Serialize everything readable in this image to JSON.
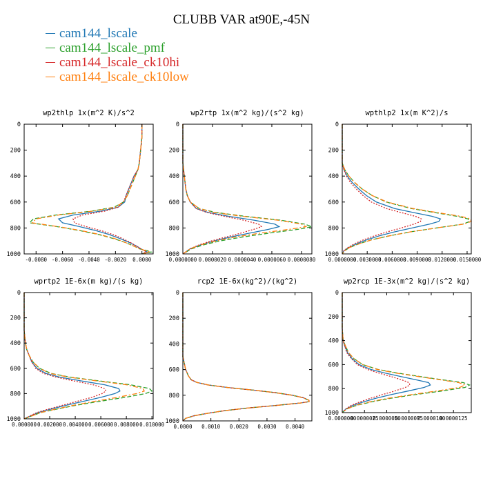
{
  "title": "CLUBB VAR at90E,-45N",
  "legend": [
    {
      "label": "cam144_lscale",
      "color": "#1f77b4"
    },
    {
      "label": "cam144_lscale_pmf",
      "color": "#2ca02c"
    },
    {
      "label": "cam144_lscale_ck10hi",
      "color": "#d62728"
    },
    {
      "label": "cam144_lscale_ck10low",
      "color": "#ff7f0e"
    }
  ],
  "chart_data": [
    {
      "type": "line",
      "title": "wp2thlp  1x(m^2 K)/s^2",
      "xlim": [
        -0.0089,
        0.00085
      ],
      "ylim": [
        1000,
        0
      ],
      "yticks": [
        0,
        200,
        400,
        600,
        800,
        1000
      ],
      "ytick_labels": [
        "0",
        "200",
        "400",
        "600",
        "800",
        "1000"
      ],
      "xticks": [
        -0.008,
        -0.006,
        -0.004,
        -0.002,
        0.0
      ],
      "xtick_labels": [
        "-0.0080",
        "-0.0060",
        "-0.0040",
        "-0.0020",
        "0.0000"
      ],
      "y": [
        0,
        100,
        200,
        300,
        350,
        400,
        450,
        500,
        550,
        600,
        640,
        670,
        700,
        730,
        760,
        790,
        820,
        850,
        880,
        910,
        940,
        960,
        975,
        985,
        1000
      ],
      "series": [
        {
          "name": "cam144_lscale",
          "style": "solid",
          "values": [
            0.0,
            0.0,
            -0.0001,
            -0.0002,
            -0.0003,
            -0.0006,
            -0.0008,
            -0.001,
            -0.0012,
            -0.0013,
            -0.0018,
            -0.0031,
            -0.0052,
            -0.0063,
            -0.006,
            -0.0047,
            -0.0035,
            -0.0025,
            -0.0017,
            -0.001,
            -0.0004,
            -0.0001,
            0.0002,
            0.0004,
            0.0
          ]
        },
        {
          "name": "cam144_lscale_pmf",
          "style": "dash",
          "values": [
            0.0,
            0.0,
            -0.0001,
            -0.0002,
            -0.0003,
            -0.0005,
            -0.0007,
            -0.0009,
            -0.0011,
            -0.0014,
            -0.0021,
            -0.0038,
            -0.0065,
            -0.0082,
            -0.0085,
            -0.0064,
            -0.0047,
            -0.0033,
            -0.0022,
            -0.0013,
            -0.0006,
            -0.0002,
            0.0004,
            0.0007,
            0.0
          ]
        },
        {
          "name": "cam144_lscale_ck10hi",
          "style": "dot",
          "values": [
            0.0,
            0.0,
            -0.0001,
            -0.0002,
            -0.0003,
            -0.0006,
            -0.0008,
            -0.001,
            -0.0012,
            -0.0014,
            -0.0018,
            -0.0028,
            -0.0045,
            -0.0052,
            -0.0051,
            -0.0042,
            -0.0031,
            -0.0022,
            -0.0015,
            -0.0009,
            -0.0004,
            -0.0001,
            0.0002,
            0.0003,
            0.0
          ]
        },
        {
          "name": "cam144_lscale_ck10low",
          "style": "dashdot",
          "values": [
            0.0,
            0.0,
            -0.0001,
            -0.0002,
            -0.0003,
            -0.0005,
            -0.0007,
            -0.0009,
            -0.0011,
            -0.0014,
            -0.002,
            -0.0037,
            -0.0063,
            -0.008,
            -0.0083,
            -0.0063,
            -0.0046,
            -0.0032,
            -0.0021,
            -0.0013,
            -0.0006,
            -0.0002,
            0.0003,
            0.0006,
            0.0
          ]
        }
      ]
    },
    {
      "type": "line",
      "title": "wp2rtp  1x(m^2 kg)/(s^2 kg)",
      "xlim": [
        0.0,
        8.7e-06
      ],
      "ylim": [
        1000,
        0
      ],
      "yticks": [
        0,
        200,
        400,
        600,
        800,
        1000
      ],
      "ytick_labels": [
        "0",
        "200",
        "400",
        "600",
        "800",
        "1000"
      ],
      "xticks": [
        0.0,
        2e-06,
        4e-06,
        6e-06,
        8e-06
      ],
      "xtick_labels": [
        "0.0000000",
        "0.0000020",
        "0.0000040",
        "0.0000060",
        "0.0000080"
      ],
      "y": [
        0,
        300,
        400,
        500,
        550,
        600,
        650,
        680,
        710,
        740,
        770,
        790,
        810,
        840,
        870,
        900,
        930,
        960,
        1000
      ],
      "series": [
        {
          "name": "cam144_lscale",
          "style": "solid",
          "values": [
            0.0,
            0.0,
            1e-07,
            2e-07,
            3e-07,
            5e-07,
            9e-07,
            1.7e-06,
            3.1e-06,
            4.8e-06,
            6.2e-06,
            6.5e-06,
            5.8e-06,
            4.5e-06,
            3.2e-06,
            2.1e-06,
            1.2e-06,
            5e-07,
            0.0
          ]
        },
        {
          "name": "cam144_lscale_pmf",
          "style": "dash",
          "values": [
            0.0,
            0.0,
            1e-07,
            2e-07,
            3e-07,
            5e-07,
            1.1e-06,
            2.2e-06,
            4.2e-06,
            6.6e-06,
            8.2e-06,
            8.7e-06,
            7.8e-06,
            5.8e-06,
            4e-06,
            2.5e-06,
            1.4e-06,
            6e-07,
            0.0
          ]
        },
        {
          "name": "cam144_lscale_ck10hi",
          "style": "dot",
          "values": [
            0.0,
            0.0,
            1e-07,
            2e-07,
            3e-07,
            5e-07,
            9e-07,
            1.6e-06,
            2.8e-06,
            4.1e-06,
            5.1e-06,
            5.3e-06,
            4.8e-06,
            3.9e-06,
            2.9e-06,
            1.9e-06,
            1.1e-06,
            5e-07,
            0.0
          ]
        },
        {
          "name": "cam144_lscale_ck10low",
          "style": "dashdot",
          "values": [
            0.0,
            0.0,
            1e-07,
            2e-07,
            3e-07,
            5e-07,
            1.1e-06,
            2.1e-06,
            4e-06,
            6.4e-06,
            8e-06,
            8.3e-06,
            7.2e-06,
            5.2e-06,
            3.5e-06,
            2.2e-06,
            1.2e-06,
            5e-07,
            0.0
          ]
        }
      ]
    },
    {
      "type": "line",
      "title": "wpthlp2  1x(m K^2)/s",
      "xlim": [
        0.0,
        0.0155
      ],
      "ylim": [
        1000,
        0
      ],
      "yticks": [
        0,
        200,
        400,
        600,
        800,
        1000
      ],
      "ytick_labels": [
        "0",
        "200",
        "400",
        "600",
        "800",
        "1000"
      ],
      "xticks": [
        0.0,
        0.003,
        0.006,
        0.009,
        0.012,
        0.015
      ],
      "xtick_labels": [
        "0.0000000",
        "0.0030000",
        "0.0060000",
        "0.0090000",
        "0.0120000",
        "0.0150000"
      ],
      "y": [
        0,
        300,
        350,
        400,
        450,
        500,
        550,
        600,
        650,
        680,
        710,
        730,
        750,
        770,
        800,
        830,
        860,
        890,
        920,
        950,
        975,
        1000
      ],
      "series": [
        {
          "name": "cam144_lscale",
          "style": "solid",
          "values": [
            0.0,
            0.0,
            0.0002,
            0.0006,
            0.0012,
            0.002,
            0.0029,
            0.0041,
            0.0063,
            0.0085,
            0.0108,
            0.0118,
            0.0116,
            0.0105,
            0.0084,
            0.0063,
            0.0045,
            0.003,
            0.0018,
            0.0008,
            0.0002,
            0.0
          ]
        },
        {
          "name": "cam144_lscale_pmf",
          "style": "dash",
          "values": [
            0.0,
            0.0,
            0.0003,
            0.0008,
            0.0015,
            0.0024,
            0.0036,
            0.0053,
            0.0083,
            0.011,
            0.0138,
            0.0151,
            0.0153,
            0.0145,
            0.0113,
            0.0082,
            0.0057,
            0.0036,
            0.0021,
            0.0009,
            0.0003,
            0.0
          ]
        },
        {
          "name": "cam144_lscale_ck10hi",
          "style": "dot",
          "values": [
            0.0,
            0.0,
            0.0002,
            0.0005,
            0.001,
            0.0017,
            0.0025,
            0.0035,
            0.0053,
            0.007,
            0.0088,
            0.0095,
            0.0094,
            0.0086,
            0.0071,
            0.0054,
            0.0039,
            0.0026,
            0.0015,
            0.0007,
            0.0002,
            0.0
          ]
        },
        {
          "name": "cam144_lscale_ck10low",
          "style": "dashdot",
          "values": [
            0.0,
            0.0,
            0.0003,
            0.0008,
            0.0015,
            0.0024,
            0.0036,
            0.0054,
            0.0085,
            0.0113,
            0.0142,
            0.0154,
            0.0155,
            0.0146,
            0.0113,
            0.0082,
            0.0057,
            0.0036,
            0.0021,
            0.0009,
            0.0003,
            0.0
          ]
        }
      ]
    },
    {
      "type": "line",
      "title": "wprtp2  1E-6x(m kg)/(s kg)",
      "xlim": [
        0.0,
        0.0101
      ],
      "ylim": [
        1000,
        0
      ],
      "yticks": [
        0,
        200,
        400,
        600,
        800,
        1000
      ],
      "ytick_labels": [
        "0",
        "200",
        "400",
        "600",
        "800",
        "1000"
      ],
      "xticks": [
        0.0,
        0.002,
        0.004,
        0.006,
        0.008,
        0.01
      ],
      "xtick_labels": [
        "0.000000",
        "0.002000",
        "0.004000",
        "0.006000",
        "0.008000",
        "0.010000"
      ],
      "y": [
        0,
        300,
        400,
        450,
        500,
        550,
        600,
        640,
        670,
        700,
        730,
        760,
        780,
        800,
        830,
        860,
        890,
        920,
        950,
        1000
      ],
      "series": [
        {
          "name": "cam144_lscale",
          "style": "solid",
          "values": [
            0.0,
            0.0,
            0.0001,
            0.0002,
            0.0004,
            0.0006,
            0.001,
            0.0017,
            0.0028,
            0.0045,
            0.0063,
            0.0074,
            0.0075,
            0.0071,
            0.006,
            0.0047,
            0.0034,
            0.0022,
            0.0011,
            0.0
          ]
        },
        {
          "name": "cam144_lscale_pmf",
          "style": "dash",
          "values": [
            0.0,
            0.0,
            0.0001,
            0.0002,
            0.0004,
            0.0007,
            0.0012,
            0.0021,
            0.0036,
            0.0059,
            0.0083,
            0.0098,
            0.01,
            0.0095,
            0.0079,
            0.006,
            0.0042,
            0.0027,
            0.0013,
            0.0
          ]
        },
        {
          "name": "cam144_lscale_ck10hi",
          "style": "dot",
          "values": [
            0.0,
            0.0,
            0.0001,
            0.0002,
            0.0004,
            0.0006,
            0.0009,
            0.0015,
            0.0025,
            0.0039,
            0.0054,
            0.0063,
            0.0064,
            0.0061,
            0.0053,
            0.0042,
            0.0031,
            0.002,
            0.001,
            0.0
          ]
        },
        {
          "name": "cam144_lscale_ck10low",
          "style": "dashdot",
          "values": [
            0.0,
            0.0,
            0.0001,
            0.0002,
            0.0004,
            0.0007,
            0.0012,
            0.002,
            0.0035,
            0.0057,
            0.008,
            0.0093,
            0.0094,
            0.0088,
            0.0073,
            0.0056,
            0.004,
            0.0026,
            0.0013,
            0.0
          ]
        }
      ]
    },
    {
      "type": "line",
      "title": "rcp2  1E-6x(kg^2)/(kg^2)",
      "xlim": [
        0.0,
        0.0046
      ],
      "ylim": [
        1000,
        0
      ],
      "yticks": [
        0,
        200,
        400,
        600,
        800,
        1000
      ],
      "ytick_labels": [
        "0",
        "200",
        "400",
        "600",
        "800",
        "1000"
      ],
      "xticks": [
        0.0,
        0.001,
        0.002,
        0.003,
        0.004
      ],
      "xtick_labels": [
        "0.0000",
        "0.0010",
        "0.0020",
        "0.0030",
        "0.0040"
      ],
      "y": [
        0,
        400,
        500,
        600,
        650,
        680,
        700,
        720,
        740,
        760,
        780,
        800,
        820,
        840,
        850,
        860,
        880,
        900,
        920,
        940,
        960,
        980,
        1000
      ],
      "series": [
        {
          "name": "cam144_lscale",
          "style": "solid",
          "values": [
            0.0,
            0.0,
            0.0,
            0.0001,
            0.0002,
            0.0003,
            0.0005,
            0.0009,
            0.0016,
            0.0025,
            0.0033,
            0.0039,
            0.0043,
            0.0045,
            0.0045,
            0.0042,
            0.0033,
            0.0023,
            0.0015,
            0.0009,
            0.0004,
            0.0001,
            0.0
          ]
        },
        {
          "name": "cam144_lscale_pmf",
          "style": "dash",
          "values": [
            0.0,
            0.0,
            0.0,
            0.0001,
            0.0002,
            0.0003,
            0.0005,
            0.0009,
            0.0016,
            0.0025,
            0.0033,
            0.0039,
            0.0043,
            0.0045,
            0.0045,
            0.0042,
            0.0033,
            0.0023,
            0.0015,
            0.0009,
            0.0004,
            0.0001,
            0.0
          ]
        },
        {
          "name": "cam144_lscale_ck10hi",
          "style": "dot",
          "values": [
            0.0,
            0.0,
            0.0,
            0.0001,
            0.0002,
            0.0003,
            0.0005,
            0.0009,
            0.0016,
            0.0025,
            0.0033,
            0.0039,
            0.0043,
            0.0045,
            0.0045,
            0.0042,
            0.0033,
            0.0023,
            0.0015,
            0.0009,
            0.0004,
            0.0001,
            0.0
          ]
        },
        {
          "name": "cam144_lscale_ck10low",
          "style": "dashdot",
          "values": [
            0.0,
            0.0,
            0.0,
            0.0001,
            0.0002,
            0.0003,
            0.0005,
            0.0009,
            0.0016,
            0.0025,
            0.0033,
            0.0039,
            0.0043,
            0.0045,
            0.0045,
            0.0042,
            0.0033,
            0.0023,
            0.0015,
            0.0009,
            0.0004,
            0.0001,
            0.0
          ]
        }
      ]
    },
    {
      "type": "line",
      "title": "wp2rcp  1E-3x(m^2 kg)/(s^2 kg)",
      "xlim": [
        0.0,
        1.45e-05
      ],
      "ylim": [
        1000,
        0
      ],
      "yticks": [
        0,
        200,
        400,
        600,
        800,
        1000
      ],
      "ytick_labels": [
        "0",
        "200",
        "400",
        "600",
        "800",
        "1000"
      ],
      "xticks": [
        0.0,
        2.5e-06,
        5e-06,
        7.5e-06,
        1e-05,
        1.25e-05
      ],
      "xtick_labels": [
        "0.0000000",
        "0.0000025",
        "0.0000050",
        "0.0000075",
        "0.0000100",
        "0.0000125"
      ],
      "y": [
        0,
        300,
        400,
        450,
        500,
        550,
        600,
        640,
        670,
        700,
        730,
        750,
        770,
        790,
        820,
        850,
        880,
        910,
        940,
        970,
        1000
      ],
      "series": [
        {
          "name": "cam144_lscale",
          "style": "solid",
          "values": [
            0.0,
            0.0,
            1e-07,
            3e-07,
            6e-07,
            1.1e-06,
            1.9e-06,
            3.2e-06,
            4.8e-06,
            6.6e-06,
            8.5e-06,
            9.7e-06,
            9.9e-06,
            9.2e-06,
            7.4e-06,
            5.5e-06,
            3.8e-06,
            2.4e-06,
            1.2e-06,
            4e-07,
            0.0
          ]
        },
        {
          "name": "cam144_lscale_pmf",
          "style": "dash",
          "values": [
            0.0,
            0.0,
            1e-07,
            4e-07,
            7e-07,
            1.3e-06,
            2.3e-06,
            4e-06,
            6.2e-06,
            8.8e-06,
            1.16e-05,
            1.36e-05,
            1.43e-05,
            1.38e-05,
            1.12e-05,
            8.2e-06,
            5.5e-06,
            3.3e-06,
            1.6e-06,
            5e-07,
            0.0
          ]
        },
        {
          "name": "cam144_lscale_ck10hi",
          "style": "dot",
          "values": [
            0.0,
            0.0,
            1e-07,
            3e-07,
            5e-07,
            1e-06,
            1.7e-06,
            2.8e-06,
            4.1e-06,
            5.5e-06,
            6.8e-06,
            7.5e-06,
            7.6e-06,
            7.1e-06,
            5.9e-06,
            4.5e-06,
            3.2e-06,
            2e-06,
            1e-06,
            4e-07,
            0.0
          ]
        },
        {
          "name": "cam144_lscale_ck10low",
          "style": "dashdot",
          "values": [
            0.0,
            0.0,
            1e-07,
            4e-07,
            7e-07,
            1.3e-06,
            2.3e-06,
            3.9e-06,
            6e-06,
            8.6e-06,
            1.13e-05,
            1.31e-05,
            1.38e-05,
            1.32e-05,
            1.06e-05,
            7.8e-06,
            5.2e-06,
            3.1e-06,
            1.5e-06,
            5e-07,
            0.0
          ]
        }
      ]
    }
  ]
}
